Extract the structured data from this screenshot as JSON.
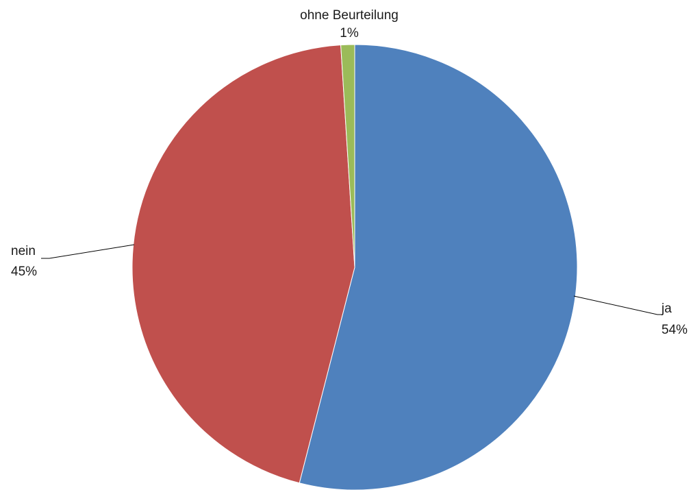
{
  "chart_data": {
    "type": "pie",
    "title": "",
    "start_angle_deg": 0,
    "direction": "clockwise",
    "slices": [
      {
        "name": "ja",
        "value": 54,
        "label": "54%",
        "color": "#4F81BD"
      },
      {
        "name": "nein",
        "value": 45,
        "label": "45%",
        "color": "#C0504D"
      },
      {
        "name": "ohne Beurteilung",
        "value": 1,
        "label": "1%",
        "color": "#9BBB59"
      }
    ],
    "legend": "none",
    "data_labels": "category name and percentage"
  }
}
